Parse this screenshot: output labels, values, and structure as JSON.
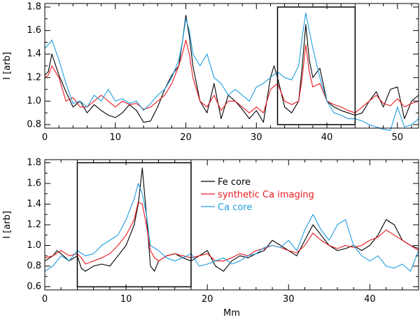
{
  "chart_data": [
    {
      "type": "line",
      "title": "",
      "xlabel": "",
      "ylabel": "I [arb]",
      "xlim": [
        0,
        53
      ],
      "ylim": [
        0.77,
        1.83
      ],
      "xticks": [
        0,
        10,
        20,
        30,
        40,
        50
      ],
      "xtick_labels": [
        "0",
        "10",
        "20",
        "30",
        "40",
        "50"
      ],
      "yticks": [
        0.8,
        1.0,
        1.2,
        1.4,
        1.6,
        1.8
      ],
      "ytick_labels": [
        "0.8",
        "1.0",
        "1.2",
        "1.4",
        "1.6",
        "1.8"
      ],
      "highlight_box": {
        "x0": 33,
        "x1": 44,
        "y0": 0.8,
        "y1": 1.8
      },
      "series": [
        {
          "name": "Fe core",
          "color": "#000000",
          "x": [
            0,
            0.5,
            1,
            2,
            3,
            4,
            5,
            6,
            7,
            8,
            9,
            10,
            11,
            12,
            13,
            14,
            15,
            16,
            17,
            18,
            19,
            19.5,
            20,
            20.5,
            21,
            22,
            23,
            24,
            25,
            26,
            27,
            28,
            29,
            30,
            31,
            32,
            32.5,
            33,
            34,
            35,
            36,
            36.5,
            37,
            37.5,
            38,
            39,
            40,
            41,
            42,
            43,
            44,
            45,
            46,
            47,
            48,
            49,
            50,
            51,
            52,
            53
          ],
          "y": [
            1.22,
            1.25,
            1.4,
            1.22,
            1.08,
            0.95,
            1.0,
            0.9,
            0.97,
            0.92,
            0.88,
            0.86,
            0.9,
            0.97,
            0.92,
            0.82,
            0.83,
            0.95,
            1.1,
            1.22,
            1.3,
            1.5,
            1.73,
            1.55,
            1.3,
            1.0,
            0.9,
            1.15,
            0.85,
            1.05,
            1.0,
            0.93,
            0.85,
            0.92,
            0.82,
            1.2,
            1.3,
            1.2,
            0.95,
            0.9,
            1.0,
            1.3,
            1.65,
            1.35,
            1.2,
            1.28,
            1.0,
            0.95,
            0.92,
            0.9,
            0.88,
            0.9,
            1.0,
            1.08,
            0.95,
            1.1,
            1.12,
            0.85,
            1.0,
            1.05
          ]
        },
        {
          "name": "synthetic Ca imaging",
          "color": "#e8191f",
          "x": [
            0,
            0.5,
            1,
            2,
            3,
            4,
            5,
            6,
            7,
            8,
            9,
            10,
            11,
            12,
            13,
            14,
            15,
            16,
            17,
            18,
            19,
            19.5,
            20,
            20.5,
            21,
            22,
            23,
            24,
            25,
            26,
            27,
            28,
            29,
            30,
            31,
            32,
            33,
            34,
            35,
            36,
            36.5,
            37,
            37.5,
            38,
            39,
            40,
            41,
            42,
            43,
            44,
            45,
            46,
            47,
            48,
            49,
            50,
            51,
            52,
            53
          ],
          "y": [
            1.2,
            1.22,
            1.3,
            1.2,
            1.0,
            1.03,
            0.95,
            0.95,
            1.0,
            1.05,
            1.0,
            0.95,
            1.0,
            0.97,
            0.98,
            0.93,
            0.95,
            1.0,
            1.05,
            1.15,
            1.3,
            1.4,
            1.52,
            1.4,
            1.2,
            1.0,
            0.95,
            1.05,
            0.92,
            1.0,
            1.0,
            0.95,
            0.9,
            0.95,
            0.9,
            1.1,
            1.15,
            1.0,
            0.97,
            1.0,
            1.2,
            1.48,
            1.25,
            1.12,
            1.15,
            1.0,
            0.97,
            0.95,
            0.92,
            0.9,
            0.95,
            1.0,
            1.05,
            0.98,
            0.96,
            1.02,
            0.95,
            0.98,
            1.0
          ]
        },
        {
          "name": "Ca core",
          "color": "#1e9ee0",
          "x": [
            0,
            0.5,
            1,
            2,
            3,
            4,
            5,
            6,
            7,
            8,
            9,
            10,
            11,
            12,
            13,
            14,
            15,
            16,
            17,
            18,
            19,
            19.5,
            20,
            20.5,
            21,
            22,
            23,
            24,
            25,
            26,
            27,
            28,
            29,
            30,
            31,
            32,
            33,
            34,
            35,
            36,
            36.5,
            37,
            37.5,
            38,
            39,
            40,
            41,
            42,
            43,
            44,
            45,
            46,
            47,
            48,
            49,
            50,
            51,
            52,
            53
          ],
          "y": [
            1.45,
            1.48,
            1.52,
            1.35,
            1.15,
            0.98,
            1.0,
            0.95,
            1.05,
            1.0,
            1.1,
            1.0,
            1.02,
            0.98,
            1.0,
            0.92,
            0.98,
            1.05,
            1.1,
            1.2,
            1.35,
            1.5,
            1.7,
            1.6,
            1.4,
            1.3,
            1.4,
            1.2,
            1.15,
            1.05,
            1.1,
            1.05,
            1.0,
            1.12,
            1.15,
            1.2,
            1.25,
            1.2,
            1.18,
            1.3,
            1.55,
            1.75,
            1.6,
            1.45,
            1.2,
            1.0,
            0.9,
            0.88,
            0.85,
            0.85,
            0.83,
            0.8,
            0.78,
            0.76,
            0.75,
            0.95,
            0.78,
            0.8,
            0.85
          ]
        }
      ]
    },
    {
      "type": "line",
      "title": "",
      "xlabel": "Mm",
      "ylabel": "I [arb]",
      "xlim": [
        0,
        46
      ],
      "ylim": [
        0.57,
        1.83
      ],
      "xticks": [
        0,
        10,
        20,
        30,
        40
      ],
      "xtick_labels": [
        "0",
        "10",
        "20",
        "30",
        "40"
      ],
      "yticks": [
        0.6,
        0.8,
        1.0,
        1.2,
        1.4,
        1.6,
        1.8
      ],
      "ytick_labels": [
        "0.6",
        "0.8",
        "1.0",
        "1.2",
        "1.4",
        "1.6",
        "1.8"
      ],
      "highlight_box": {
        "x0": 4,
        "x1": 18,
        "y0": 0.6,
        "y1": 1.8
      },
      "legend": {
        "placement": "top-right"
      },
      "series": [
        {
          "name": "Fe core",
          "color": "#000000",
          "x": [
            0,
            1,
            1.5,
            2,
            3,
            4,
            4.5,
            5,
            6,
            7,
            8,
            9,
            10,
            11,
            11.5,
            12,
            12.5,
            13,
            13.5,
            14,
            15,
            16,
            17,
            18,
            19,
            20,
            21,
            22,
            23,
            24,
            25,
            26,
            27,
            28,
            29,
            30,
            31,
            32,
            33,
            34,
            35,
            36,
            37,
            38,
            39,
            40,
            41,
            42,
            43,
            44,
            45,
            46
          ],
          "y": [
            0.85,
            0.9,
            0.95,
            0.92,
            0.85,
            0.9,
            0.78,
            0.75,
            0.8,
            0.82,
            0.8,
            0.9,
            1.0,
            1.2,
            1.4,
            1.75,
            1.3,
            0.8,
            0.75,
            0.85,
            0.9,
            0.92,
            0.88,
            0.85,
            0.9,
            0.95,
            0.8,
            0.75,
            0.85,
            0.9,
            0.88,
            0.92,
            0.95,
            1.05,
            1.0,
            0.95,
            0.9,
            1.05,
            1.2,
            1.1,
            1.0,
            0.95,
            0.97,
            1.0,
            0.95,
            1.0,
            1.1,
            1.25,
            1.2,
            1.05,
            1.0,
            0.97
          ]
        },
        {
          "name": "synthetic Ca imaging",
          "color": "#e8191f",
          "x": [
            0,
            1,
            2,
            3,
            4,
            4.5,
            5,
            6,
            7,
            8,
            9,
            10,
            11,
            11.5,
            12,
            12.5,
            13,
            13.5,
            14,
            15,
            16,
            17,
            18,
            19,
            20,
            21,
            22,
            23,
            24,
            25,
            26,
            27,
            28,
            29,
            30,
            31,
            32,
            33,
            34,
            35,
            36,
            37,
            38,
            39,
            40,
            41,
            42,
            43,
            44,
            45,
            46
          ],
          "y": [
            0.88,
            0.9,
            0.95,
            0.9,
            0.92,
            0.88,
            0.82,
            0.85,
            0.88,
            0.92,
            1.0,
            1.1,
            1.25,
            1.42,
            1.4,
            1.2,
            0.95,
            0.88,
            0.85,
            0.9,
            0.92,
            0.9,
            0.88,
            0.9,
            0.92,
            0.85,
            0.85,
            0.88,
            0.92,
            0.9,
            0.95,
            0.97,
            1.0,
            0.98,
            0.95,
            0.93,
            1.0,
            1.12,
            1.05,
            1.0,
            0.97,
            1.0,
            0.98,
            1.0,
            1.05,
            1.08,
            1.15,
            1.1,
            1.05,
            1.0,
            0.95
          ]
        },
        {
          "name": "Ca core",
          "color": "#1e9ee0",
          "x": [
            0,
            1,
            2,
            3,
            4,
            5,
            6,
            7,
            8,
            9,
            10,
            11,
            11.5,
            12,
            12.5,
            13,
            14,
            15,
            16,
            17,
            18,
            19,
            20,
            21,
            22,
            23,
            24,
            25,
            26,
            27,
            28,
            29,
            30,
            31,
            32,
            33,
            34,
            35,
            36,
            37,
            38,
            39,
            40,
            41,
            42,
            43,
            44,
            45,
            46
          ],
          "y": [
            0.75,
            0.8,
            0.9,
            0.85,
            0.95,
            0.9,
            0.92,
            1.0,
            1.05,
            1.1,
            1.25,
            1.45,
            1.6,
            1.5,
            1.3,
            1.0,
            0.95,
            0.88,
            0.85,
            0.88,
            0.92,
            0.8,
            0.82,
            0.85,
            0.88,
            0.82,
            0.85,
            0.9,
            0.92,
            0.98,
            1.0,
            0.98,
            1.05,
            0.95,
            1.15,
            1.3,
            1.15,
            1.05,
            1.2,
            1.25,
            1.0,
            0.9,
            0.85,
            0.9,
            0.8,
            0.78,
            0.82,
            0.75,
            0.95
          ]
        }
      ]
    }
  ]
}
